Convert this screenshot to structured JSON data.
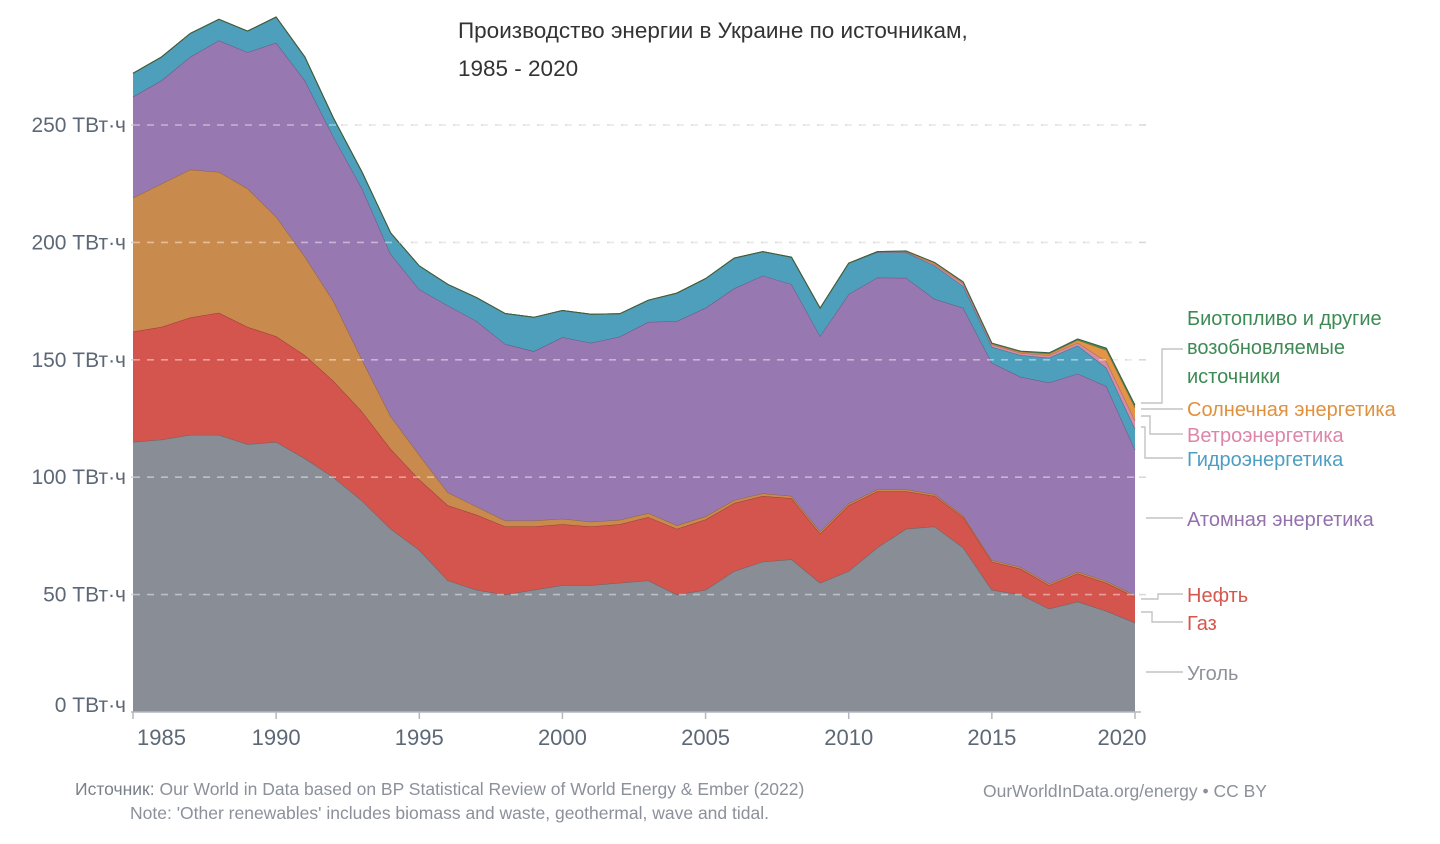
{
  "title": {
    "line1": "Производство энергии в Украине по источникам,",
    "line2": "1985 - 2020"
  },
  "legend": {
    "biofuel": {
      "label": "Биотопливо и другие возобновляемые источники",
      "color": "#3d8a55"
    },
    "solar": {
      "label": "Солнечная энергетика",
      "color": "#e0913d"
    },
    "wind": {
      "label": "Ветроэнергетика",
      "color": "#dd85a8"
    },
    "hydro": {
      "label": "Гидроэнергетика",
      "color": "#4d9ec4"
    },
    "nuclear": {
      "label": "Атомная энергетика",
      "color": "#9471ae"
    },
    "oil": {
      "label": "Нефть",
      "color": "#d5574e"
    },
    "gas": {
      "label": "Газ",
      "color": "#d5564d"
    },
    "coal": {
      "label": "Уголь",
      "color": "#8e929a"
    }
  },
  "footer": {
    "source_label": "Источник:",
    "source_text": "Our World in Data based on BP Statistical Review of World Energy & Ember (2022)",
    "note_text": "Note: 'Other renewables' includes biomass and waste, geothermal, wave and tidal.",
    "site_credit": "OurWorldInData.org/energy • CC BY"
  },
  "chart_data": {
    "type": "area",
    "stacked": true,
    "title": "Производство энергии в Украине по источникам, 1985 - 2020",
    "unit": "ТВт·ч",
    "ylabel": "ТВт·ч",
    "xlabel": "",
    "ylim": [
      0,
      300
    ],
    "grid": "dashed horizontal",
    "legend_position": "right",
    "y_ticks": [
      0,
      50,
      100,
      150,
      200,
      250
    ],
    "y_tick_unit": "ТВт·ч",
    "x_tick_labels": [
      1985,
      1990,
      1995,
      2000,
      2005,
      2010,
      2015,
      2020
    ],
    "x": [
      1985,
      1986,
      1987,
      1988,
      1989,
      1990,
      1991,
      1992,
      1993,
      1994,
      1995,
      1996,
      1997,
      1998,
      1999,
      2000,
      2001,
      2002,
      2003,
      2004,
      2005,
      2006,
      2007,
      2008,
      2009,
      2010,
      2011,
      2012,
      2013,
      2014,
      2015,
      2016,
      2017,
      2018,
      2019,
      2020
    ],
    "series": [
      {
        "key": "coal",
        "name": "Уголь",
        "color": "#898d95",
        "values": [
          115,
          116,
          118,
          118,
          114,
          115,
          108,
          100,
          90,
          78,
          69,
          56,
          52,
          50,
          52,
          54,
          54,
          55,
          56,
          50,
          52,
          60,
          64,
          65,
          55,
          60,
          70,
          78,
          79,
          70,
          52,
          50,
          44,
          47,
          43,
          38
        ]
      },
      {
        "key": "gas",
        "name": "Газ",
        "color": "#d4544e",
        "values": [
          47,
          48,
          50,
          52,
          50,
          45,
          44,
          41,
          38,
          34,
          30,
          32,
          32,
          29,
          27,
          26,
          25,
          25,
          27,
          28,
          30,
          29,
          28,
          26,
          21,
          28,
          24,
          16,
          13,
          13,
          12,
          11,
          10,
          12,
          12,
          11
        ]
      },
      {
        "key": "oil",
        "name": "Нефть",
        "color": "#c98a4e",
        "values": [
          57,
          61,
          63,
          60,
          59,
          51,
          42,
          34,
          22,
          14,
          10.5,
          5.5,
          3.5,
          2.5,
          2.5,
          2.3,
          2,
          1.8,
          1.7,
          1.5,
          1.3,
          1.2,
          1.1,
          1,
          0.9,
          0.8,
          0.8,
          0.8,
          0.7,
          0.7,
          0.7,
          0.7,
          0.7,
          0.7,
          0.7,
          0.7
        ]
      },
      {
        "key": "nuclear",
        "name": "Атомная энергетика",
        "color": "#9878b0",
        "values": [
          43,
          44,
          48,
          56,
          58,
          74,
          75,
          70,
          73,
          69,
          70.5,
          79.6,
          79,
          75.2,
          72.1,
          77.3,
          76.2,
          78.1,
          81.4,
          87,
          88.8,
          90.2,
          92.7,
          90.2,
          83.2,
          89.2,
          90.2,
          90.1,
          83.2,
          88.4,
          84,
          81,
          85.6,
          84.4,
          83,
          62
        ]
      },
      {
        "key": "hydro",
        "name": "Гидроэнергетика",
        "color": "#4d9fbb",
        "values": [
          10,
          10,
          10,
          9,
          9,
          11,
          10,
          8,
          7,
          9,
          10,
          9,
          10,
          13,
          14.5,
          11.4,
          12.2,
          9.7,
          9.3,
          11.9,
          12.5,
          12.9,
          10.3,
          11.5,
          11.9,
          13.1,
          10.8,
          10.8,
          14.2,
          9.3,
          6.8,
          9.3,
          10.6,
          12,
          7.9,
          9
        ]
      },
      {
        "key": "wind",
        "name": "Ветроэнергетика",
        "color": "#d88ba3",
        "values": [
          0,
          0,
          0,
          0,
          0,
          0,
          0,
          0,
          0,
          0,
          0,
          0,
          0,
          0,
          0,
          0,
          0,
          0,
          0,
          0,
          0,
          0,
          0,
          0,
          0,
          0.1,
          0.2,
          0.3,
          0.6,
          1.1,
          1.0,
          0.9,
          1.0,
          1.2,
          2.7,
          3.5
        ]
      },
      {
        "key": "solar",
        "name": "Солнечная энергетика",
        "color": "#e39544",
        "values": [
          0,
          0,
          0,
          0,
          0,
          0,
          0,
          0,
          0,
          0,
          0,
          0,
          0,
          0,
          0,
          0,
          0,
          0,
          0,
          0,
          0,
          0,
          0,
          0,
          0,
          0,
          0.1,
          0.3,
          0.6,
          0.5,
          0.4,
          0.5,
          0.7,
          1.1,
          4.8,
          5.5
        ]
      },
      {
        "key": "biofuel",
        "name": "Биотопливо и другие возобновляемые источники",
        "color": "#47885c",
        "values": [
          0,
          0,
          0,
          0,
          0,
          0,
          0,
          0,
          0,
          0,
          0,
          0,
          0,
          0,
          0,
          0,
          0,
          0,
          0,
          0,
          0,
          0,
          0,
          0,
          0,
          0,
          0,
          0.1,
          0.2,
          0.2,
          0.2,
          0.3,
          0.4,
          0.5,
          0.9,
          1.0
        ]
      }
    ]
  }
}
